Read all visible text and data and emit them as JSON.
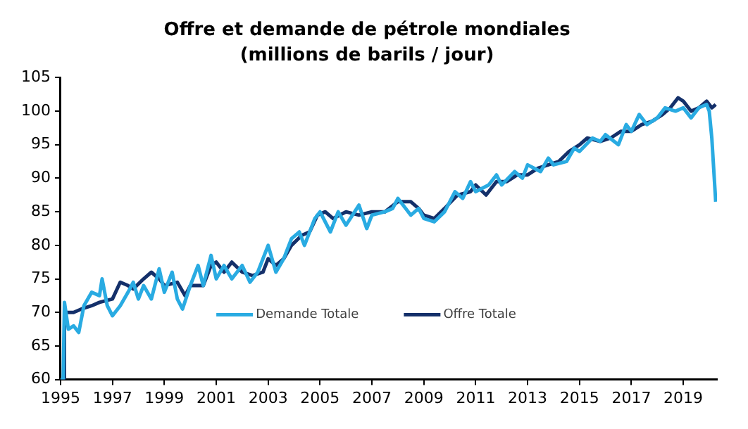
{
  "chart_data": {
    "type": "line",
    "title": "Offre et demande de pétrole mondiales",
    "subtitle": "(millions de barils / jour)",
    "xlim": [
      1995,
      2020.3
    ],
    "xticks": [
      1995,
      1997,
      1999,
      2001,
      2003,
      2005,
      2007,
      2009,
      2011,
      2013,
      2015,
      2017,
      2019
    ],
    "ylim": [
      60,
      105
    ],
    "yticks": [
      60,
      65,
      70,
      75,
      80,
      85,
      90,
      95,
      100,
      105
    ],
    "grid": false,
    "legend": "bottom",
    "marker": "none",
    "line_style": "solid",
    "series": [
      {
        "name": "Demande Totale",
        "color": "#29abe2",
        "x": [
          1995.0,
          1995.1,
          1995.15,
          1995.3,
          1995.5,
          1995.7,
          1995.9,
          1996.2,
          1996.5,
          1996.6,
          1996.8,
          1997.0,
          1997.3,
          1997.6,
          1997.8,
          1998.0,
          1998.2,
          1998.5,
          1998.8,
          1999.0,
          1999.3,
          1999.5,
          1999.7,
          2000.0,
          2000.3,
          2000.5,
          2000.8,
          2001.0,
          2001.3,
          2001.6,
          2002.0,
          2002.3,
          2002.6,
          2003.0,
          2003.3,
          2003.6,
          2003.9,
          2004.2,
          2004.4,
          2004.8,
          2005.0,
          2005.4,
          2005.7,
          2006.0,
          2006.5,
          2006.8,
          2007.0,
          2007.5,
          2007.8,
          2008.0,
          2008.5,
          2008.8,
          2009.0,
          2009.4,
          2009.8,
          2010.2,
          2010.5,
          2010.8,
          2011.0,
          2011.5,
          2011.8,
          2012.0,
          2012.5,
          2012.8,
          2013.0,
          2013.5,
          2013.8,
          2014.0,
          2014.5,
          2014.8,
          2015.0,
          2015.5,
          2015.8,
          2016.0,
          2016.5,
          2016.8,
          2017.0,
          2017.3,
          2017.6,
          2018.0,
          2018.3,
          2018.7,
          2019.0,
          2019.3,
          2019.6,
          2019.9,
          2020.0,
          2020.1,
          2020.25
        ],
        "values": [
          60,
          60,
          71.5,
          67.5,
          68,
          67,
          71,
          73,
          72.5,
          75,
          71,
          69.5,
          71,
          73,
          74.5,
          72,
          74,
          72,
          76.5,
          73,
          76,
          72,
          70.5,
          74,
          77,
          74,
          78.5,
          75,
          77,
          75,
          77,
          74.5,
          76,
          80,
          76,
          78,
          81,
          82,
          80,
          84,
          85,
          82,
          85,
          83,
          86,
          82.5,
          84.5,
          85,
          85.5,
          87,
          84.5,
          85.5,
          84,
          83.5,
          85,
          88,
          87,
          89.5,
          88,
          89,
          90.5,
          89,
          91,
          90,
          92,
          91,
          93,
          92,
          92.5,
          94.5,
          94,
          96,
          95.5,
          96.5,
          95,
          98,
          97,
          99.5,
          98,
          99,
          100.5,
          100,
          100.5,
          99,
          100.5,
          101,
          100,
          96,
          86.5
        ]
      },
      {
        "name": "Offre Totale",
        "color": "#14306a",
        "x": [
          1995.0,
          1995.12,
          1995.15,
          1995.5,
          1995.8,
          1996.2,
          1996.5,
          1997.0,
          1997.3,
          1997.6,
          1997.8,
          1998.2,
          1998.5,
          1998.8,
          1999.0,
          1999.5,
          1999.8,
          2000.0,
          2000.5,
          2000.8,
          2001.0,
          2001.3,
          2001.6,
          2002.0,
          2002.4,
          2002.8,
          2003.0,
          2003.3,
          2003.6,
          2003.9,
          2004.3,
          2004.6,
          2004.9,
          2005.2,
          2005.5,
          2006.0,
          2006.5,
          2007.0,
          2007.5,
          2008.0,
          2008.5,
          2008.8,
          2009.0,
          2009.4,
          2009.8,
          2010.3,
          2010.8,
          2011.0,
          2011.4,
          2011.8,
          2012.2,
          2012.6,
          2013.0,
          2013.4,
          2013.8,
          2014.2,
          2014.6,
          2015.0,
          2015.3,
          2015.8,
          2016.2,
          2016.6,
          2017.0,
          2017.4,
          2017.8,
          2018.2,
          2018.5,
          2018.8,
          2019.0,
          2019.3,
          2019.6,
          2019.9,
          2020.1,
          2020.25
        ],
        "values": [
          60,
          60,
          70,
          70,
          70.5,
          71,
          71.5,
          72,
          74.5,
          74,
          73.5,
          75,
          76,
          75,
          74,
          74.5,
          72.5,
          74,
          74,
          77,
          77.5,
          76,
          77.5,
          76,
          75.5,
          76,
          78,
          77,
          78,
          80,
          81.5,
          82,
          84.5,
          85,
          84,
          85,
          84.5,
          85,
          85,
          86.5,
          86.5,
          85.5,
          84.5,
          84,
          85.5,
          87.5,
          88,
          89,
          87.5,
          89.5,
          89.5,
          90.5,
          90.5,
          91.5,
          92,
          92.5,
          94,
          95,
          96,
          95.5,
          96,
          97,
          97,
          98,
          98.5,
          99.5,
          100.5,
          102,
          101.5,
          100,
          100.5,
          101.5,
          100.5,
          101
        ]
      }
    ]
  }
}
